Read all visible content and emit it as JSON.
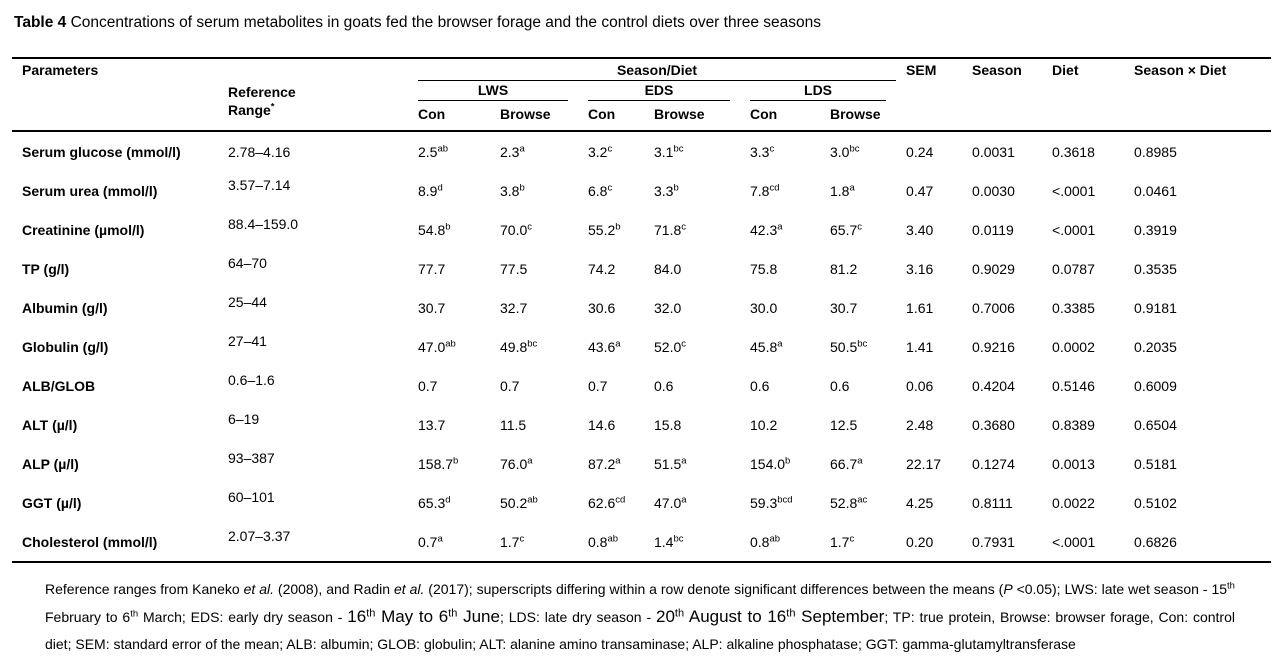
{
  "title": {
    "bold": "Table 4",
    "rest": " Concentrations of serum metabolites in goats fed the browser forage and the control diets over three seasons"
  },
  "table": {
    "header": {
      "parameters": "Parameters",
      "reference_line1": "Reference",
      "reference_line2": "Range",
      "reference_sup": "*",
      "season_diet": "Season/Diet",
      "groups": [
        "LWS",
        "EDS",
        "LDS"
      ],
      "sub": [
        "Con",
        "Browse",
        "Con",
        "Browse",
        "Con",
        "Browse"
      ],
      "stats": [
        "SEM",
        "Season",
        "Diet",
        "Season × Diet"
      ]
    },
    "rows": [
      {
        "param": "Serum glucose (mmol/l)",
        "ref": "2.78–4.16",
        "cells": [
          {
            "v": "2.5",
            "s": "ab"
          },
          {
            "v": "2.3",
            "s": "a"
          },
          {
            "v": "3.2",
            "s": "c"
          },
          {
            "v": "3.1",
            "s": "bc"
          },
          {
            "v": "3.3",
            "s": "c"
          },
          {
            "v": "3.0",
            "s": "bc"
          }
        ],
        "sem": "0.24",
        "season": "0.0031",
        "diet": "0.3618",
        "sxd": "0.8985"
      },
      {
        "param": "Serum urea (mmol/l)",
        "ref": "3.57–7.14",
        "cells": [
          {
            "v": "8.9",
            "s": "d"
          },
          {
            "v": "3.8",
            "s": "b"
          },
          {
            "v": "6.8",
            "s": "c"
          },
          {
            "v": "3.3",
            "s": "b"
          },
          {
            "v": "7.8",
            "s": "cd"
          },
          {
            "v": "1.8",
            "s": "a"
          }
        ],
        "sem": "0.47",
        "season": "0.0030",
        "diet": "<.0001",
        "sxd": "0.0461"
      },
      {
        "param": "Creatinine (µmol/l)",
        "ref": "88.4–159.0",
        "cells": [
          {
            "v": "54.8",
            "s": "b"
          },
          {
            "v": "70.0",
            "s": "c"
          },
          {
            "v": "55.2",
            "s": "b"
          },
          {
            "v": "71.8",
            "s": "c"
          },
          {
            "v": "42.3",
            "s": "a"
          },
          {
            "v": "65.7",
            "s": "c"
          }
        ],
        "sem": "3.40",
        "season": "0.0119",
        "diet": "<.0001",
        "sxd": "0.3919"
      },
      {
        "param": "TP (g/l)",
        "ref": "64–70",
        "cells": [
          {
            "v": "77.7",
            "s": ""
          },
          {
            "v": "77.5",
            "s": ""
          },
          {
            "v": "74.2",
            "s": ""
          },
          {
            "v": "84.0",
            "s": ""
          },
          {
            "v": "75.8",
            "s": ""
          },
          {
            "v": "81.2",
            "s": ""
          }
        ],
        "sem": "3.16",
        "season": "0.9029",
        "diet": "0.0787",
        "sxd": "0.3535"
      },
      {
        "param": "Albumin (g/l)",
        "ref": "25–44",
        "cells": [
          {
            "v": "30.7",
            "s": ""
          },
          {
            "v": "32.7",
            "s": ""
          },
          {
            "v": "30.6",
            "s": ""
          },
          {
            "v": "32.0",
            "s": ""
          },
          {
            "v": "30.0",
            "s": ""
          },
          {
            "v": "30.7",
            "s": ""
          }
        ],
        "sem": "1.61",
        "season": "0.7006",
        "diet": "0.3385",
        "sxd": "0.9181"
      },
      {
        "param": "Globulin (g/l)",
        "ref": "27–41",
        "cells": [
          {
            "v": "47.0",
            "s": "ab"
          },
          {
            "v": "49.8",
            "s": "bc"
          },
          {
            "v": "43.6",
            "s": "a"
          },
          {
            "v": "52.0",
            "s": "c"
          },
          {
            "v": "45.8",
            "s": "a"
          },
          {
            "v": "50.5",
            "s": "bc"
          }
        ],
        "sem": "1.41",
        "season": "0.9216",
        "diet": "0.0002",
        "sxd": "0.2035"
      },
      {
        "param": "ALB/GLOB",
        "ref": "0.6–1.6",
        "cells": [
          {
            "v": "0.7",
            "s": ""
          },
          {
            "v": "0.7",
            "s": ""
          },
          {
            "v": "0.7",
            "s": ""
          },
          {
            "v": "0.6",
            "s": ""
          },
          {
            "v": "0.6",
            "s": ""
          },
          {
            "v": "0.6",
            "s": ""
          }
        ],
        "sem": "0.06",
        "season": "0.4204",
        "diet": "0.5146",
        "sxd": "0.6009"
      },
      {
        "param": "ALT (µ/l)",
        "ref": "6–19",
        "cells": [
          {
            "v": "13.7",
            "s": ""
          },
          {
            "v": "11.5",
            "s": ""
          },
          {
            "v": "14.6",
            "s": ""
          },
          {
            "v": "15.8",
            "s": ""
          },
          {
            "v": "10.2",
            "s": ""
          },
          {
            "v": "12.5",
            "s": ""
          }
        ],
        "sem": "2.48",
        "season": "0.3680",
        "diet": "0.8389",
        "sxd": "0.6504"
      },
      {
        "param": "ALP (µ/l)",
        "ref": "93–387",
        "cells": [
          {
            "v": "158.7",
            "s": "b"
          },
          {
            "v": "76.0",
            "s": "a"
          },
          {
            "v": "87.2",
            "s": "a"
          },
          {
            "v": "51.5",
            "s": "a"
          },
          {
            "v": "154.0",
            "s": "b"
          },
          {
            "v": "66.7",
            "s": "a"
          }
        ],
        "sem": "22.17",
        "season": "0.1274",
        "diet": "0.0013",
        "sxd": "0.5181"
      },
      {
        "param": "GGT (µ/l)",
        "ref": "60–101",
        "cells": [
          {
            "v": "65.3",
            "s": "d"
          },
          {
            "v": "50.2",
            "s": "ab"
          },
          {
            "v": "62.6",
            "s": "cd"
          },
          {
            "v": "47.0",
            "s": "a"
          },
          {
            "v": "59.3",
            "s": "bcd"
          },
          {
            "v": "52.8",
            "s": "ac"
          }
        ],
        "sem": "4.25",
        "season": "0.8111",
        "diet": "0.0022",
        "sxd": "0.5102"
      },
      {
        "param": "Cholesterol (mmol/l)",
        "ref": "2.07–3.37",
        "cells": [
          {
            "v": "0.7",
            "s": "a"
          },
          {
            "v": "1.7",
            "s": "c"
          },
          {
            "v": "0.8",
            "s": "ab"
          },
          {
            "v": "1.4",
            "s": "bc"
          },
          {
            "v": "0.8",
            "s": "ab"
          },
          {
            "v": "1.7",
            "s": "c"
          }
        ],
        "sem": "0.20",
        "season": "0.7931",
        "diet": "<.0001",
        "sxd": "0.6826"
      }
    ]
  },
  "footnote": {
    "segments": [
      {
        "t": "Reference ranges from Kaneko "
      },
      {
        "t": "et al.",
        "i": true
      },
      {
        "t": " (2008), and Radin "
      },
      {
        "t": "et al.",
        "i": true
      },
      {
        "t": " (2017); superscripts differing within a row denote significant differences between the means ("
      },
      {
        "t": "P",
        "i": true
      },
      {
        "t": " <0.05); LWS: late wet season - 15"
      },
      {
        "t": "th",
        "sup": true
      },
      {
        "t": " February to 6"
      },
      {
        "t": "th",
        "sup": true
      },
      {
        "t": " March; EDS: early dry season - "
      },
      {
        "t": "16",
        "lg": true
      },
      {
        "t": "th",
        "sup": true,
        "lg": true
      },
      {
        "t": " May to 6",
        "lg": true
      },
      {
        "t": "th",
        "sup": true,
        "lg": true
      },
      {
        "t": " June",
        "lg": true
      },
      {
        "t": "; LDS: late dry season - "
      },
      {
        "t": "20",
        "lg": true
      },
      {
        "t": "th",
        "sup": true,
        "lg": true
      },
      {
        "t": " August to 16",
        "lg": true
      },
      {
        "t": "th",
        "sup": true,
        "lg": true
      },
      {
        "t": " September",
        "lg": true
      },
      {
        "t": "; TP: true protein, Browse: browser forage, Con: control diet; SEM: standard error of the mean; ALB: albumin; GLOB: globulin; ALT: alanine amino transaminase; ALP: alkaline phosphatase; GGT: gamma-glutamyltransferase"
      }
    ]
  }
}
